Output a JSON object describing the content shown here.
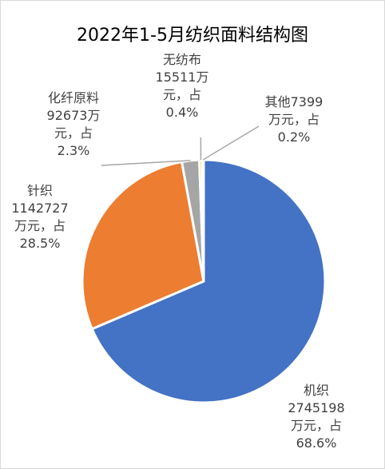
{
  "chart_data": {
    "type": "pie",
    "title": "2022年1-5月纺织面料结构图",
    "slices": [
      {
        "name": "机织",
        "value": 2745198,
        "percent": 68.6,
        "color": "#4472c4",
        "label_lines": [
          "机织",
          "2745198",
          "万元，占",
          "68.6%"
        ]
      },
      {
        "name": "针织",
        "value": 1142727,
        "percent": 28.5,
        "color": "#ed7d31",
        "label_lines": [
          "针织",
          "1142727",
          "万元，占",
          "28.5%"
        ]
      },
      {
        "name": "化纤原料",
        "value": 92673,
        "percent": 2.3,
        "color": "#a5a5a5",
        "label_lines": [
          "化纤原料",
          "92673万",
          "元，占",
          "2.3%"
        ]
      },
      {
        "name": "无纺布",
        "value": 15511,
        "percent": 0.4,
        "color": "#ffc000",
        "label_lines": [
          "无纺布",
          "15511万",
          "元，占",
          "0.4%"
        ]
      },
      {
        "name": "其他",
        "value": 7399,
        "percent": 0.2,
        "color": "#5b9bd5",
        "label_lines": [
          "其他7399",
          "万元，占",
          "0.2%"
        ]
      }
    ],
    "legend": "none"
  }
}
